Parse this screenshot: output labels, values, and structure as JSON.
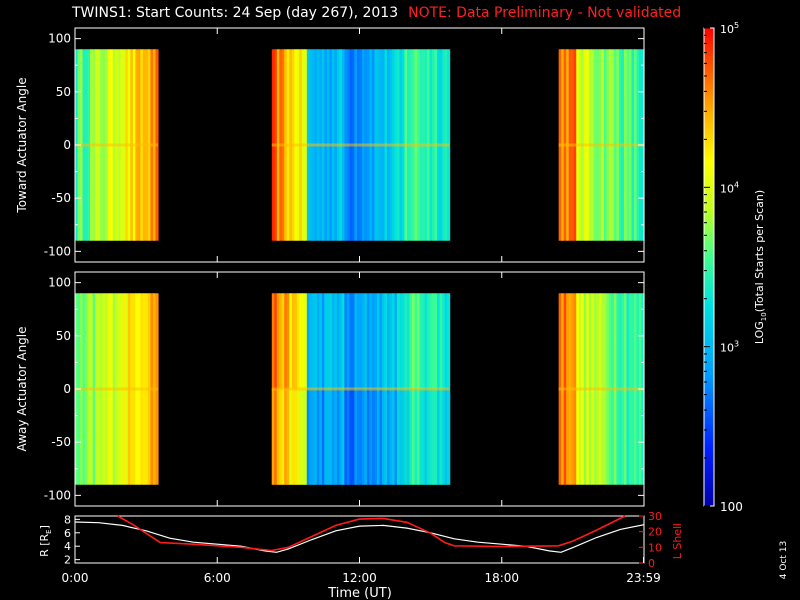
{
  "title": "TWINS1: Start Counts: 24 Sep (day 267), 2013",
  "note": "NOTE: Data Preliminary - Not validated",
  "date_stamp": "4 Oct 13",
  "colorbar": {
    "label": "LOG10(Total Starts per Scan)",
    "label_main": "LOG",
    "label_sub": "10",
    "label_rest": "(Total Starts per Scan)",
    "scale": "log",
    "range": [
      100,
      100000
    ],
    "ticks": [
      {
        "base": "10",
        "exp": "5",
        "value": 100000
      },
      {
        "base": "10",
        "exp": "4",
        "value": 10000
      },
      {
        "base": "10",
        "exp": "3",
        "value": 1000
      },
      {
        "plain": "100",
        "value": 100
      }
    ]
  },
  "chart_data": [
    {
      "type": "heatmap",
      "panel": "toward",
      "ylabel": "Toward Actuator Angle",
      "ylim": [
        -110,
        110
      ],
      "yticks": [
        "100",
        "50",
        "0",
        "-50",
        "-100"
      ],
      "ytick_values": [
        100,
        50,
        0,
        -50,
        -100
      ],
      "xlim": [
        0,
        24
      ],
      "data_y_range": [
        -90,
        90
      ],
      "time_blocks_hours": [
        [
          0,
          3.5
        ],
        [
          8.3,
          15.8
        ],
        [
          20.4,
          24
        ]
      ],
      "value_range": [
        300,
        100000
      ]
    },
    {
      "type": "heatmap",
      "panel": "away",
      "ylabel": "Away Actuator Angle",
      "ylim": [
        -110,
        110
      ],
      "yticks": [
        "100",
        "50",
        "0",
        "-50",
        "-100"
      ],
      "ytick_values": [
        100,
        50,
        0,
        -50,
        -100
      ],
      "xlim": [
        0,
        24
      ],
      "data_y_range": [
        -90,
        90
      ],
      "time_blocks_hours": [
        [
          0,
          3.5
        ],
        [
          8.3,
          15.8
        ],
        [
          20.4,
          24
        ]
      ],
      "value_range": [
        300,
        100000
      ]
    },
    {
      "type": "line",
      "panel": "orbit",
      "xlabel": "Time (UT)",
      "xticks": [
        "0:00",
        "6:00",
        "12:00",
        "18:00",
        "23:59"
      ],
      "xtick_values": [
        0,
        6,
        12,
        18,
        23.98
      ],
      "ylabel_left_main": "R [R",
      "ylabel_left_sub": "E",
      "ylabel_left_end": "]",
      "ylim_left": [
        1.5,
        8.5
      ],
      "yticks_left": [
        "2",
        "4",
        "6",
        "8"
      ],
      "ylabel_right": "L Shell",
      "ylim_right": [
        0,
        30
      ],
      "yticks_right": [
        "0",
        "10",
        "20",
        "30"
      ],
      "series": [
        {
          "color": "#ffffff",
          "axis": "left",
          "x": [
            0,
            1,
            2,
            3,
            4,
            5,
            6,
            7,
            8,
            8.5,
            9,
            10,
            11,
            12,
            13,
            14,
            15,
            16,
            17,
            18,
            19,
            20,
            20.5,
            21,
            22,
            23,
            24
          ],
          "y": [
            7.6,
            7.5,
            7.1,
            6.3,
            5.2,
            4.6,
            4.3,
            4.0,
            3.3,
            3.1,
            3.6,
            5.0,
            6.3,
            7.0,
            7.1,
            6.7,
            6.0,
            5.1,
            4.6,
            4.3,
            4.0,
            3.3,
            3.1,
            3.8,
            5.3,
            6.5,
            7.2
          ]
        },
        {
          "color": "#ff1a1a",
          "axis": "right",
          "x": [
            1.8,
            2.5,
            3.2,
            3.6,
            5,
            6,
            7,
            8.3,
            9,
            10,
            11,
            12,
            13,
            14,
            15,
            15.6,
            16,
            18,
            20.4,
            21,
            22,
            23.2
          ],
          "y": [
            30,
            24,
            17,
            13,
            12,
            11,
            10,
            8,
            10,
            17,
            24,
            28,
            28.5,
            26,
            19,
            13,
            11,
            10.5,
            11,
            14,
            21,
            30
          ]
        }
      ]
    }
  ]
}
